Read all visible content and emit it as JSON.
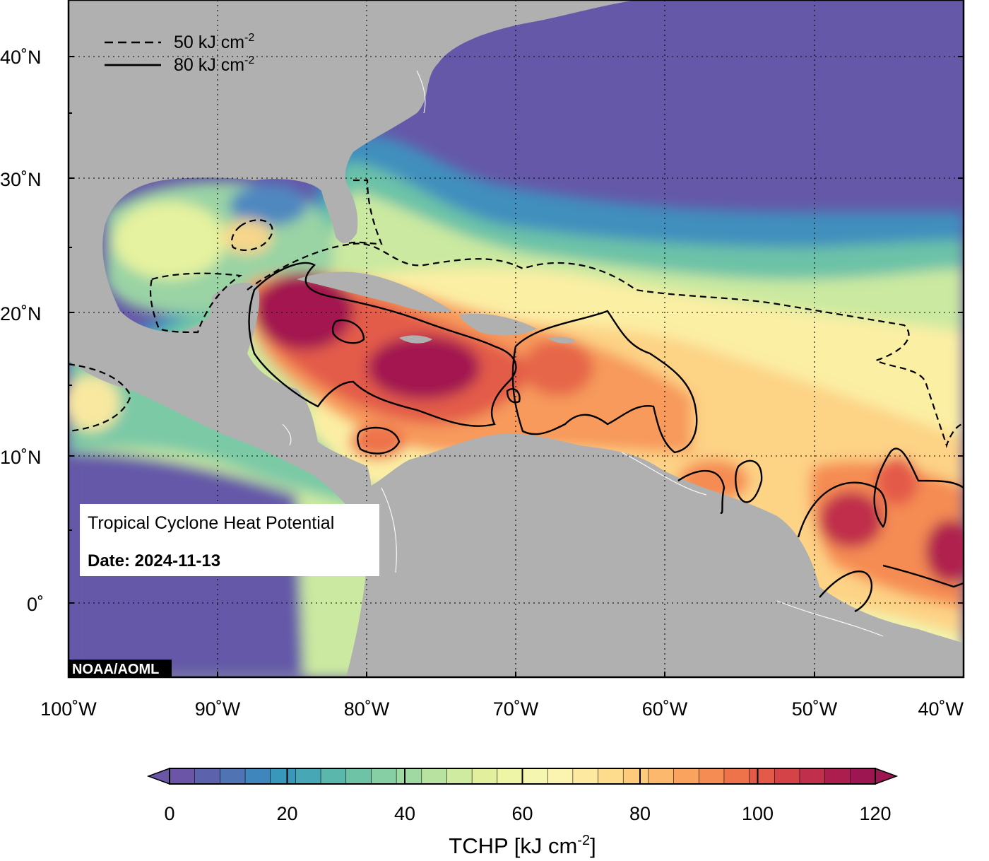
{
  "map": {
    "title_box": {
      "title": "Tropical Cyclone Heat Potential",
      "date_label": "Date: 2024-11-13"
    },
    "credit": "NOAA/AOML",
    "contour_legend": [
      {
        "style": "dashed",
        "value": "50 kJ cm",
        "exponent": "-2"
      },
      {
        "style": "solid",
        "value": "80 kJ cm",
        "exponent": "-2"
      }
    ],
    "lat_ticks": [
      "40˚N",
      "30˚N",
      "20˚N",
      "10˚N",
      "0˚"
    ],
    "lon_ticks": [
      "100˚W",
      "90˚W",
      "80˚W",
      "70˚W",
      "60˚W",
      "50˚W",
      "40˚W"
    ],
    "colors": {
      "ocean_cold": "#6558a8",
      "land": "#b0b0b0",
      "warm_core": "#a3174f"
    }
  },
  "colorbar": {
    "ticks": [
      "0",
      "20",
      "40",
      "60",
      "80",
      "100",
      "120"
    ],
    "label": "TCHP [kJ cm",
    "label_exponent": "-2",
    "label_close": "]",
    "colors": [
      "#6a55a6",
      "#5d62ad",
      "#4f73b3",
      "#3f86bc",
      "#3a97bc",
      "#47a7b5",
      "#5ab7ac",
      "#6ec3a6",
      "#86cea4",
      "#a0d9a2",
      "#b8e2a0",
      "#cfeb9f",
      "#e2f09e",
      "#eef5a6",
      "#f5f6b0",
      "#fbf4b0",
      "#fde9a0",
      "#fedc8d",
      "#fdcb7b",
      "#fcb86c",
      "#f9a35e",
      "#f58c53",
      "#ee734b",
      "#e45a49",
      "#d44348",
      "#c02f4b",
      "#ac1e4e",
      "#9e1651"
    ]
  }
}
